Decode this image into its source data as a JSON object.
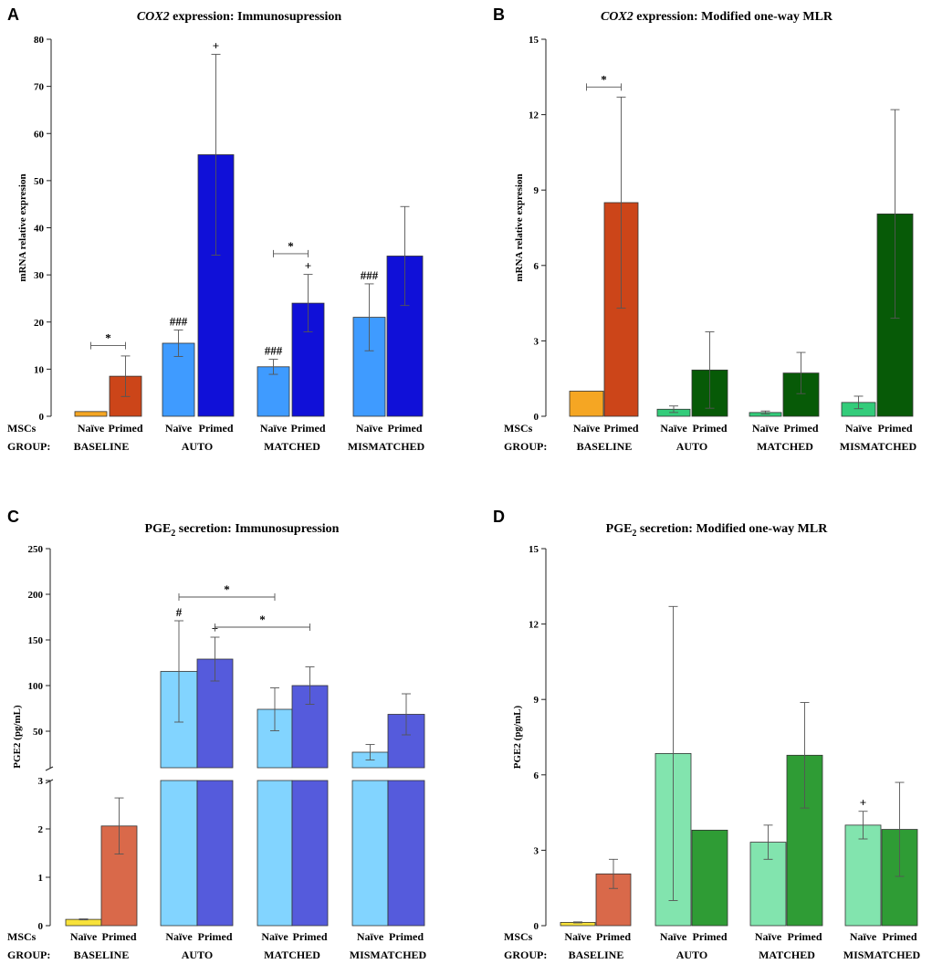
{
  "chart_data": [
    {
      "panel": "A",
      "type": "bar",
      "title_italic": "COX2",
      "title_rest": " expression: Immunosupression",
      "ylabel": "mRNA relative expresion",
      "ylim": [
        0,
        80
      ],
      "yticks": [
        "0",
        "10",
        "20",
        "30",
        "40",
        "50",
        "60",
        "70",
        "80"
      ],
      "row_labels": {
        "msc": "MSCs",
        "group": "GROUP:"
      },
      "groups": [
        "BASELINE",
        "AUTO",
        "MATCHED",
        "MISMATCHED"
      ],
      "bar_labels": [
        "Naïve",
        "Primed",
        "Naïve",
        "Primed",
        "Naïve",
        "Primed",
        "Naïve",
        "Primed"
      ],
      "values": [
        1,
        8.5,
        15.5,
        55.5,
        10.5,
        24,
        21,
        34
      ],
      "errors": [
        0,
        4.3,
        2.8,
        21.3,
        1.6,
        6.1,
        7.1,
        10.5
      ],
      "colors": [
        "#f5a623",
        "#cc4519",
        "#3f9bff",
        "#1010d8",
        "#3f9bff",
        "#1010d8",
        "#3f9bff",
        "#1010d8"
      ],
      "marks": [
        "",
        "",
        "###",
        "+",
        "###",
        "+",
        "###",
        ""
      ],
      "significance": [
        {
          "from": 0,
          "to": 1,
          "label": "*",
          "y": 15
        },
        {
          "from": 4,
          "to": 5,
          "label": "*",
          "y": 34.5
        }
      ]
    },
    {
      "panel": "B",
      "type": "bar",
      "title_italic": "COX2",
      "title_rest": " expression: Modified one-way MLR",
      "ylabel": "mRNA relative expresion",
      "ylim": [
        0,
        15
      ],
      "yticks": [
        "0",
        "3",
        "6",
        "9",
        "12",
        "15"
      ],
      "row_labels": {
        "msc": "MSCs",
        "group": "GROUP:"
      },
      "groups": [
        "BASELINE",
        "AUTO",
        "MATCHED",
        "MISMATCHED"
      ],
      "bar_labels": [
        "Naïve",
        "Primed",
        "Naïve",
        "Primed",
        "Naïve",
        "Primed",
        "Naïve",
        "Primed"
      ],
      "values": [
        1,
        8.5,
        0.28,
        1.84,
        0.15,
        1.72,
        0.55,
        8.05
      ],
      "errors": [
        0,
        4.2,
        0.13,
        1.52,
        0.06,
        0.82,
        0.25,
        4.15
      ],
      "colors": [
        "#f5a623",
        "#cc4519",
        "#33cc7a",
        "#075a07",
        "#33cc7a",
        "#075a07",
        "#33cc7a",
        "#075a07"
      ],
      "marks": [
        "",
        "",
        "",
        "",
        "",
        "",
        "",
        ""
      ],
      "significance": [
        {
          "from": 0,
          "to": 1,
          "label": "*",
          "y": 13.1
        }
      ]
    },
    {
      "panel": "C",
      "type": "bar",
      "title": "PGE",
      "title_sub": "2",
      "title_rest": " secretion: Immunosupression",
      "ylabel": "PGE2 (pg/mL)",
      "broken_axis": true,
      "ylim_lower": [
        0,
        3
      ],
      "ylim_upper": [
        10,
        250
      ],
      "yticks_lower": [
        "0",
        "1",
        "2",
        "3"
      ],
      "yticks_upper": [
        "50",
        "100",
        "150",
        "200",
        "250"
      ],
      "row_labels": {
        "msc": "MSCs",
        "group": "GROUP:"
      },
      "groups": [
        "BASELINE",
        "AUTO",
        "MATCHED",
        "MISMATCHED"
      ],
      "bar_labels": [
        "Naïve",
        "Primed",
        "Naïve",
        "Primed",
        "Naïve",
        "Primed",
        "Naïve",
        "Primed"
      ],
      "values": [
        0.13,
        2.06,
        115.5,
        129,
        74,
        100,
        27,
        68.5
      ],
      "errors": [
        0.01,
        0.58,
        55.5,
        24,
        23.5,
        20.5,
        8.5,
        22.5
      ],
      "colors": [
        "#f8e23a",
        "#d9694a",
        "#82d4ff",
        "#555bdc",
        "#82d4ff",
        "#555bdc",
        "#82d4ff",
        "#555bdc"
      ],
      "marks": [
        "",
        "",
        "#",
        "+",
        "",
        "",
        "",
        ""
      ],
      "significance": [
        {
          "from": 2,
          "to": 4,
          "label": "*",
          "y": 197
        },
        {
          "from": 3,
          "to": 5,
          "label": "*",
          "y": 164
        }
      ]
    },
    {
      "panel": "D",
      "type": "bar",
      "title": "PGE",
      "title_sub": "2",
      "title_rest": " secretion: Modified one-way MLR",
      "ylabel": "PGE2 (pg/mL)",
      "ylim": [
        0,
        15
      ],
      "yticks": [
        "0",
        "3",
        "6",
        "9",
        "12",
        "15"
      ],
      "row_labels": {
        "msc": "MSCs",
        "group": "GROUP:"
      },
      "groups": [
        "BASELINE",
        "AUTO",
        "MATCHED",
        "MISMATCHED"
      ],
      "bar_labels": [
        "Naïve",
        "Primed",
        "Naïve",
        "Primed",
        "Naïve",
        "Primed",
        "Naïve",
        "Primed"
      ],
      "values": [
        0.13,
        2.06,
        6.85,
        3.8,
        3.32,
        6.78,
        4.0,
        3.83
      ],
      "errors": [
        0.02,
        0.58,
        5.85,
        0,
        0.68,
        2.1,
        0.55,
        1.87
      ],
      "colors": [
        "#f8e23a",
        "#d9694a",
        "#82e4ae",
        "#2f9c35",
        "#82e4ae",
        "#2f9c35",
        "#82e4ae",
        "#2f9c35"
      ],
      "marks": [
        "",
        "",
        "",
        "",
        "",
        "",
        "+",
        ""
      ],
      "significance": []
    }
  ]
}
